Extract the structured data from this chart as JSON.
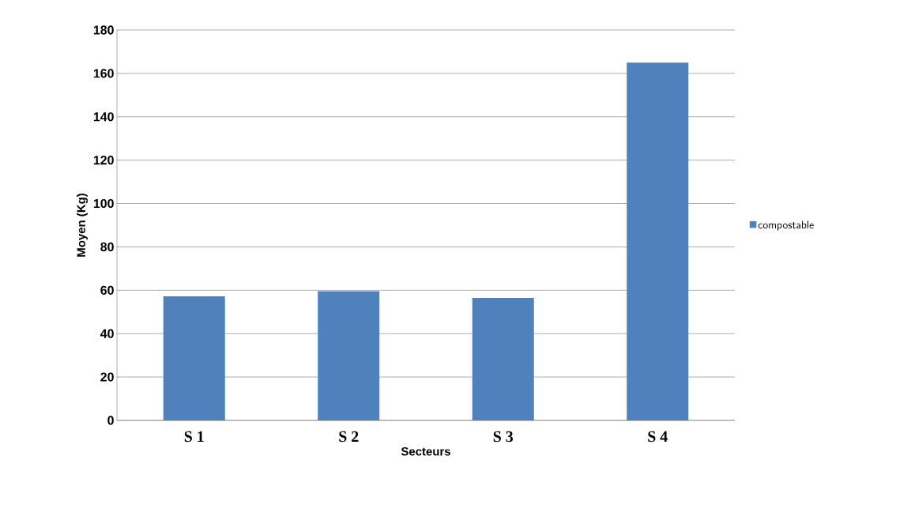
{
  "chart_data": {
    "type": "bar",
    "xlabel": "Secteurs",
    "ylabel": "Moyen (Kg)",
    "categories": [
      "S 1",
      "S 2",
      "S 3",
      "S 4"
    ],
    "series": [
      {
        "name": "compostable",
        "color": "#4f81bd",
        "values": [
          57.2,
          59.6,
          56.5,
          165
        ]
      }
    ],
    "ylim": [
      0,
      180
    ],
    "yticks": [
      0,
      20,
      40,
      60,
      80,
      100,
      120,
      140,
      160,
      180
    ],
    "grid": "y",
    "legend": "right"
  }
}
